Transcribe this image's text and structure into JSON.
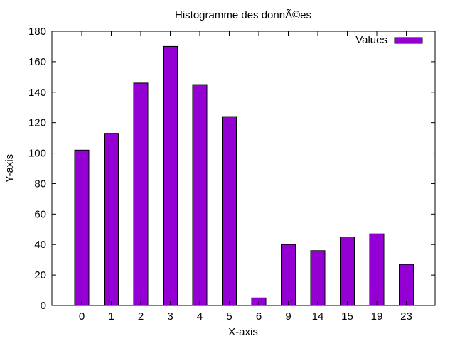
{
  "chart_data": {
    "type": "bar",
    "title": "Histogramme des donnÃ©es",
    "xlabel": "X-axis",
    "ylabel": "Y-axis",
    "categories": [
      "0",
      "1",
      "2",
      "3",
      "4",
      "5",
      "6",
      "9",
      "14",
      "15",
      "19",
      "23"
    ],
    "series": [
      {
        "name": "Values",
        "color": "#9400d3",
        "values": [
          102,
          113,
          146,
          170,
          145,
          124,
          5,
          40,
          36,
          45,
          47,
          27
        ]
      }
    ],
    "ylim": [
      0,
      180
    ],
    "yticks": [
      0,
      20,
      40,
      60,
      80,
      100,
      120,
      140,
      160,
      180
    ],
    "grid": false,
    "legend_position": "top-right"
  }
}
